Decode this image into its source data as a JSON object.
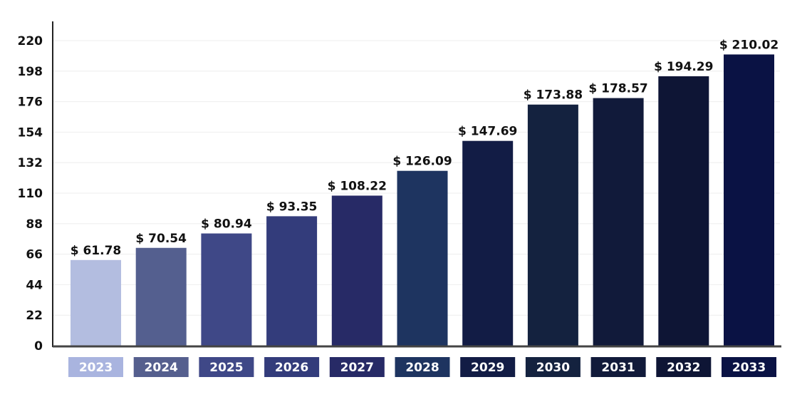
{
  "chart_data": {
    "type": "bar",
    "title": "",
    "xlabel": "",
    "ylabel": "",
    "categories": [
      "2023",
      "2024",
      "2025",
      "2026",
      "2027",
      "2028",
      "2029",
      "2030",
      "2031",
      "2032",
      "2033"
    ],
    "values": [
      61.78,
      70.54,
      80.94,
      93.35,
      108.22,
      126.09,
      147.69,
      173.88,
      178.57,
      194.29,
      210.02
    ],
    "data_labels": [
      "$ 61.78",
      "$ 70.54",
      "$ 80.94",
      "$ 93.35",
      "$ 108.22",
      "$ 126.09",
      "$ 147.69",
      "$ 173.88",
      "$ 178.57",
      "$ 194.29",
      "$ 210.02"
    ],
    "yticks": [
      0,
      22,
      44,
      66,
      88,
      110,
      132,
      154,
      176,
      198,
      220
    ],
    "ylim": [
      0,
      220
    ],
    "grid": true,
    "legend": "none",
    "bar_colors": [
      "#b3bde0",
      "#545f8f",
      "#3f4887",
      "#333c7b",
      "#272a66",
      "#1e3460",
      "#121c45",
      "#14223f",
      "#111a3a",
      "#0e1535",
      "#0a1244"
    ],
    "category_label_colors": [
      "#a9b4df",
      "#555f8e",
      "#3f4887",
      "#333c7b",
      "#272a66",
      "#1e3460",
      "#121c45",
      "#14223f",
      "#111a3a",
      "#0e1535",
      "#0a1244"
    ]
  }
}
